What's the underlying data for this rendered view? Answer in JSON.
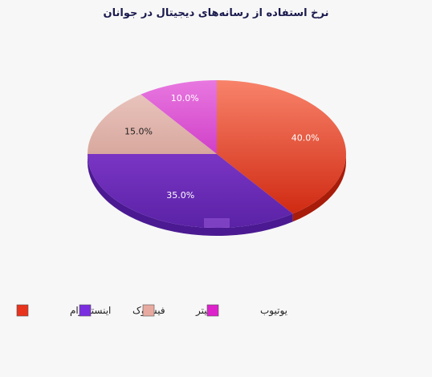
{
  "chart_data": {
    "type": "pie",
    "title": "نرخ استفاده از رسانه‌های دیجیتال در جوانان",
    "slices": [
      {
        "name": "اینستاگرام",
        "value": 40.0,
        "label": "40.0%",
        "color": "#e8341c"
      },
      {
        "name": "فیسبوک",
        "value": 35.0,
        "label": "35.0%",
        "color": "#7b2ee0"
      },
      {
        "name": "توییتر",
        "value": 15.0,
        "label": "15.0%",
        "color": "#e8aaa0"
      },
      {
        "name": "یوتیوب",
        "value": 10.0,
        "label": "10.0%",
        "color": "#dd22cc"
      }
    ],
    "legend_position": "bottom",
    "three_d": true
  }
}
